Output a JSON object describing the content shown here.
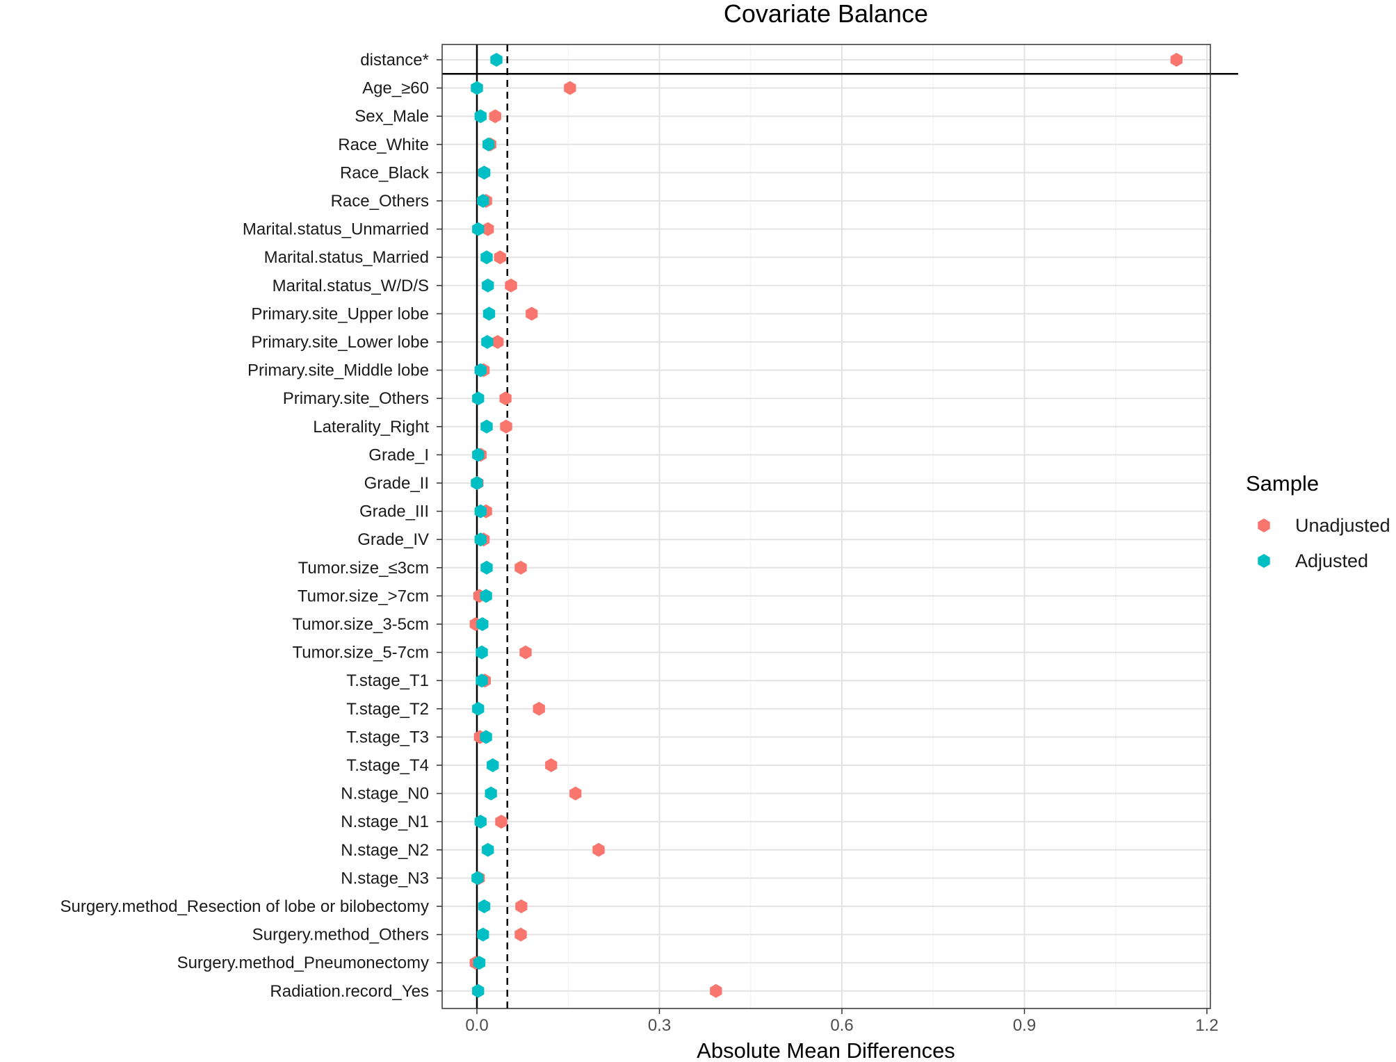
{
  "chart_data": {
    "type": "scatter",
    "title": "Covariate Balance",
    "xlabel": "Absolute Mean Differences",
    "ylabel": "",
    "xlim": [
      -0.06,
      1.22
    ],
    "x_ticks": [
      0.0,
      0.3,
      0.6,
      0.9,
      1.2
    ],
    "x_tick_labels": [
      "0.0",
      "0.3",
      "0.6",
      "0.9",
      "1.2"
    ],
    "threshold": 0.05,
    "grid": true,
    "legend": {
      "title": "Sample",
      "position": "right"
    },
    "categories": [
      "distance*",
      "Age_≥60",
      "Sex_Male",
      "Race_White",
      "Race_Black",
      "Race_Others",
      "Marital.status_Unmarried",
      "Marital.status_Married",
      "Marital.status_W/D/S",
      "Primary.site_Upper lobe",
      "Primary.site_Lower lobe",
      "Primary.site_Middle lobe",
      "Primary.site_Others",
      "Laterality_Right",
      "Grade_I",
      "Grade_II",
      "Grade_III",
      "Grade_IV",
      "Tumor.size_≤3cm",
      "Tumor.size_>7cm",
      "Tumor.size_3-5cm",
      "Tumor.size_5-7cm",
      "T.stage_T1",
      "T.stage_T2",
      "T.stage_T3",
      "T.stage_T4",
      "N.stage_N0",
      "N.stage_N1",
      "N.stage_N2",
      "N.stage_N3",
      "Surgery.method_Resection of lobe or bilobectomy",
      "Surgery.method_Others",
      "Surgery.method_Pneumonectomy",
      "Radiation.record_Yes"
    ],
    "series": [
      {
        "name": "Unadjusted",
        "color": "#F8766D",
        "values": [
          1.15,
          0.153,
          0.03,
          0.022,
          0.012,
          0.015,
          0.018,
          0.038,
          0.056,
          0.09,
          0.034,
          0.011,
          0.047,
          0.048,
          0.006,
          0.001,
          0.015,
          0.011,
          0.072,
          0.004,
          -0.002,
          0.08,
          0.013,
          0.102,
          0.005,
          0.122,
          0.162,
          0.04,
          0.2,
          0.003,
          0.073,
          0.072,
          -0.002,
          0.393
        ]
      },
      {
        "name": "Adjusted",
        "color": "#00BFC4",
        "values": [
          0.032,
          0.0,
          0.006,
          0.019,
          0.012,
          0.01,
          0.002,
          0.016,
          0.018,
          0.02,
          0.017,
          0.006,
          0.002,
          0.016,
          0.002,
          0.0,
          0.006,
          0.006,
          0.016,
          0.015,
          0.009,
          0.008,
          0.008,
          0.002,
          0.015,
          0.026,
          0.023,
          0.006,
          0.018,
          0.001,
          0.012,
          0.01,
          0.004,
          0.002
        ]
      }
    ]
  }
}
